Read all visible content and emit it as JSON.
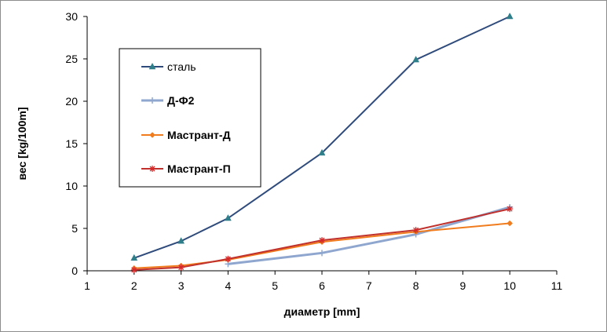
{
  "chart_data": {
    "type": "line",
    "xlabel": "диаметр [mm]",
    "ylabel": "вес [kg/100m]",
    "xlim": [
      1,
      11
    ],
    "ylim": [
      0,
      30
    ],
    "xticks": [
      1,
      2,
      3,
      4,
      5,
      6,
      7,
      8,
      9,
      10,
      11
    ],
    "yticks": [
      0,
      5,
      10,
      15,
      20,
      25,
      30
    ],
    "grid": false,
    "legend": "upper-left inside plot",
    "series": [
      {
        "name": "сталь",
        "color": "#2e7f8a",
        "line_color": "#2f4b7c",
        "marker": "triangle",
        "bold_label": false,
        "x": [
          2,
          3,
          4,
          6,
          8,
          10
        ],
        "y": [
          1.5,
          3.5,
          6.2,
          13.9,
          24.9,
          30.0
        ]
      },
      {
        "name": "Д-Ф2",
        "color": "#8fa7cf",
        "line_color": "#8fa7cf",
        "marker": "plus",
        "bold_label": true,
        "x": [
          4,
          6,
          8,
          10
        ],
        "y": [
          0.8,
          2.1,
          4.3,
          7.5
        ]
      },
      {
        "name": "Мастрант-Д",
        "color": "#f07c1e",
        "line_color": "#f07c1e",
        "marker": "diamond",
        "bold_label": true,
        "x": [
          2,
          3,
          4,
          6,
          8,
          10
        ],
        "y": [
          0.3,
          0.6,
          1.3,
          3.4,
          4.6,
          5.6
        ]
      },
      {
        "name": "Мастрант-П",
        "color": "#d42a2a",
        "line_color": "#c0302c",
        "marker": "star",
        "bold_label": true,
        "x": [
          2,
          3,
          4,
          6,
          8,
          10
        ],
        "y": [
          0.1,
          0.4,
          1.4,
          3.6,
          4.8,
          7.3
        ]
      }
    ]
  }
}
